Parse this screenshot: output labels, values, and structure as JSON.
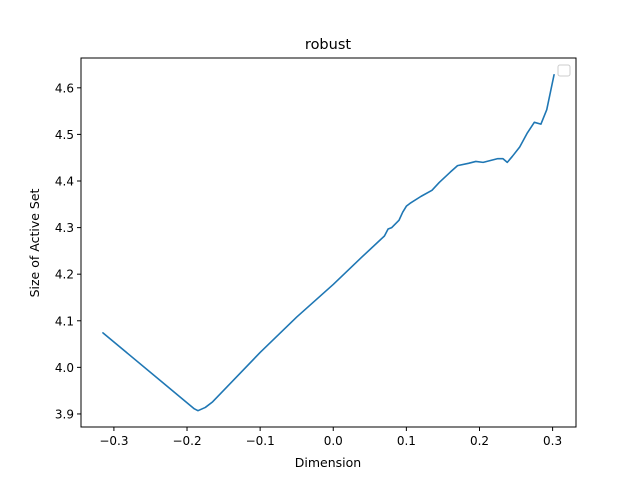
{
  "chart_data": {
    "type": "line",
    "title": "robust",
    "xlabel": "Dimension",
    "ylabel": "Size of Active Set",
    "xlim": [
      -0.345,
      0.332
    ],
    "ylim": [
      3.872,
      4.664
    ],
    "xticks": [
      {
        "value": -0.3,
        "label": "−0.3"
      },
      {
        "value": -0.2,
        "label": "−0.2"
      },
      {
        "value": -0.1,
        "label": "−0.1"
      },
      {
        "value": 0.0,
        "label": "0.0"
      },
      {
        "value": 0.1,
        "label": "0.1"
      },
      {
        "value": 0.2,
        "label": "0.2"
      },
      {
        "value": 0.3,
        "label": "0.3"
      }
    ],
    "yticks": [
      {
        "value": 3.9,
        "label": "3.9"
      },
      {
        "value": 4.0,
        "label": "4.0"
      },
      {
        "value": 4.1,
        "label": "4.1"
      },
      {
        "value": 4.2,
        "label": "4.2"
      },
      {
        "value": 4.3,
        "label": "4.3"
      },
      {
        "value": 4.4,
        "label": "4.4"
      },
      {
        "value": 4.5,
        "label": "4.5"
      },
      {
        "value": 4.6,
        "label": "4.6"
      }
    ],
    "grid": false,
    "legend": "top-right, empty",
    "series": [
      {
        "color": "#1f77b4",
        "x": [
          -0.315,
          -0.19,
          -0.185,
          -0.175,
          -0.165,
          -0.1,
          -0.05,
          0.0,
          0.04,
          0.07,
          0.075,
          0.08,
          0.09,
          0.095,
          0.1,
          0.105,
          0.12,
          0.135,
          0.145,
          0.16,
          0.17,
          0.185,
          0.195,
          0.205,
          0.215,
          0.225,
          0.232,
          0.238,
          0.245,
          0.255,
          0.265,
          0.275,
          0.284,
          0.292,
          0.302
        ],
        "y": [
          4.074,
          3.911,
          3.907,
          3.914,
          3.926,
          4.032,
          4.108,
          4.178,
          4.238,
          4.282,
          4.297,
          4.3,
          4.316,
          4.333,
          4.346,
          4.352,
          4.367,
          4.38,
          4.397,
          4.419,
          4.433,
          4.438,
          4.442,
          4.44,
          4.444,
          4.448,
          4.448,
          4.44,
          4.453,
          4.473,
          4.502,
          4.526,
          4.522,
          4.553,
          4.628
        ]
      }
    ]
  }
}
